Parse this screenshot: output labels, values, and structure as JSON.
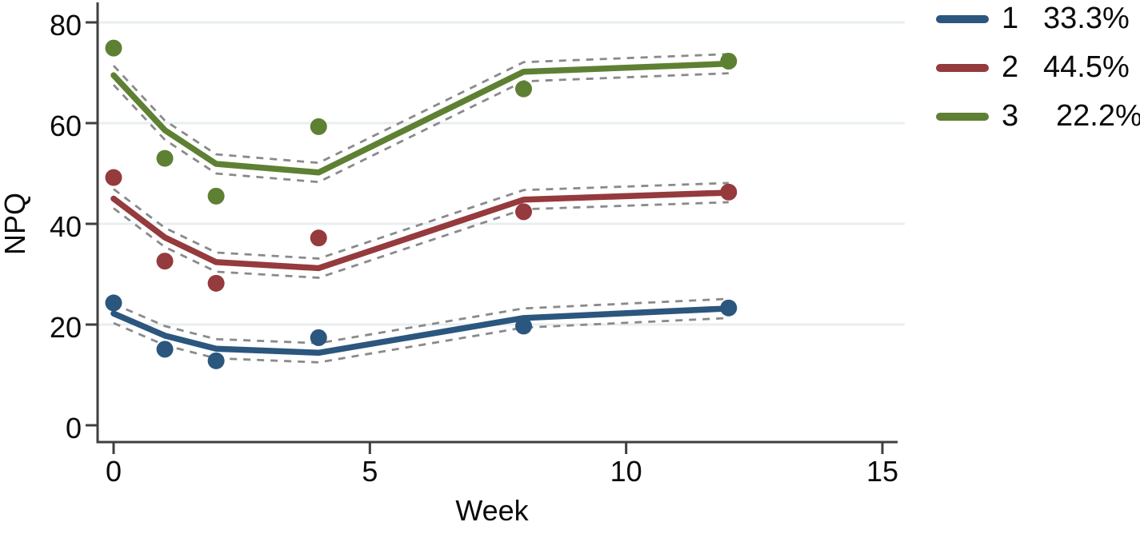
{
  "chart_data": {
    "type": "line",
    "title": "",
    "xlabel": "Week",
    "ylabel": "NPQ",
    "x_weeks": [
      0,
      1,
      2,
      4,
      8,
      12
    ],
    "xticks": [
      0,
      5,
      10,
      15
    ],
    "yticks": [
      0,
      20,
      40,
      60,
      80
    ],
    "xlim": [
      0,
      15
    ],
    "ylim": [
      0,
      80
    ],
    "grid": "horizontal-light",
    "gridline_color": "#e9eff1",
    "axis_color": "#3f3f3f",
    "ci_line_color": "#8a8a8a",
    "ci_style": "dashed",
    "legend_position": "top-right",
    "series": [
      {
        "name": "class-1",
        "legend_label": "1",
        "legend_pct": "33.3%",
        "color": "#2b567e",
        "fitted": [
          22.2,
          17.8,
          15.2,
          14.4,
          21.3,
          23.2
        ],
        "observed": [
          24.3,
          15.1,
          12.8,
          17.4,
          19.7,
          23.3
        ],
        "ci_halfwidth_units": 1.9
      },
      {
        "name": "class-2",
        "legend_label": "2",
        "legend_pct": "44.5%",
        "color": "#953a3d",
        "fitted": [
          45.0,
          37.3,
          32.4,
          31.2,
          44.8,
          46.2
        ],
        "observed": [
          49.2,
          32.6,
          28.2,
          37.2,
          42.4,
          46.3
        ],
        "ci_halfwidth_units": 1.9
      },
      {
        "name": "class-3",
        "legend_label": "3",
        "legend_pct": "22.2%",
        "color": "#5e8033",
        "fitted": [
          69.5,
          58.6,
          51.9,
          50.2,
          70.2,
          71.8
        ],
        "observed": [
          74.9,
          53.0,
          45.5,
          59.3,
          66.8,
          72.3
        ],
        "ci_halfwidth_units": 1.9
      }
    ]
  }
}
